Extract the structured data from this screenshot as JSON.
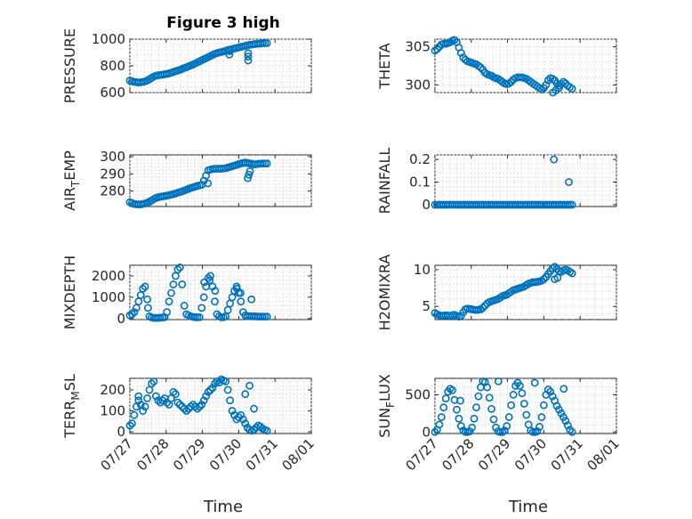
{
  "figure_title": "Figure 3 high",
  "x_axis_label": "Time",
  "x_tick_labels": [
    "07/27",
    "07/28",
    "07/29",
    "07/30",
    "07/31",
    "08/01"
  ],
  "marker_color": "#0072bd",
  "chart_data": [
    {
      "type": "scatter",
      "ylabel": "PRESSURE",
      "ylabel_sub": "",
      "ylabel_tail": "",
      "ylim": [
        600,
        1000
      ],
      "yticks": [
        600,
        800,
        1000
      ],
      "x": [
        0.0,
        0.06,
        0.12,
        0.18,
        0.24,
        0.3,
        0.36,
        0.42,
        0.48,
        0.54,
        0.6,
        0.66,
        0.72,
        0.78,
        0.84,
        0.9,
        0.96,
        1.02,
        1.08,
        1.14,
        1.2,
        1.26,
        1.32,
        1.38,
        1.44,
        1.5,
        1.56,
        1.62,
        1.68,
        1.74,
        1.8,
        1.86,
        1.92,
        1.98,
        2.04,
        2.1,
        2.16,
        2.22,
        2.28,
        2.34,
        2.4,
        2.46,
        2.52,
        2.58,
        2.64,
        2.7,
        2.76,
        2.82,
        2.88,
        2.94,
        3.0,
        3.06,
        3.12,
        3.18,
        3.24,
        3.3,
        3.36,
        3.42,
        3.48,
        3.54,
        3.6,
        3.66,
        3.72,
        3.78,
        2.74,
        2.74,
        3.26,
        3.26,
        3.26
      ],
      "y": [
        690,
        685,
        680,
        678,
        676,
        677,
        680,
        684,
        690,
        700,
        710,
        720,
        726,
        730,
        732,
        734,
        737,
        740,
        744,
        749,
        755,
        760,
        765,
        770,
        777,
        784,
        790,
        797,
        803,
        810,
        818,
        826,
        834,
        842,
        850,
        858,
        866,
        874,
        882,
        890,
        896,
        900,
        904,
        908,
        912,
        918,
        922,
        926,
        930,
        934,
        938,
        942,
        946,
        950,
        954,
        958,
        960,
        962,
        965,
        966,
        968,
        970,
        970,
        971,
        885,
        910,
        840,
        870,
        895
      ]
    },
    {
      "type": "scatter",
      "ylabel": "THETA",
      "ylabel_sub": "",
      "ylabel_tail": "",
      "ylim": [
        299,
        306
      ],
      "yticks": [
        300,
        305
      ],
      "x": [
        0.0,
        0.06,
        0.12,
        0.18,
        0.24,
        0.3,
        0.36,
        0.42,
        0.48,
        0.54,
        0.6,
        0.66,
        0.72,
        0.78,
        0.84,
        0.9,
        0.96,
        1.02,
        1.08,
        1.14,
        1.2,
        1.26,
        1.32,
        1.38,
        1.44,
        1.5,
        1.56,
        1.62,
        1.68,
        1.74,
        1.8,
        1.86,
        1.92,
        1.98,
        2.04,
        2.1,
        2.16,
        2.22,
        2.28,
        2.34,
        2.4,
        2.46,
        2.52,
        2.58,
        2.64,
        2.7,
        2.76,
        2.82,
        2.88,
        2.94,
        3.0,
        3.06,
        3.12,
        3.18,
        3.24,
        3.3,
        3.36,
        3.42,
        3.48,
        3.54,
        3.6,
        3.66,
        3.72,
        3.78,
        3.25,
        3.33,
        3.42
      ],
      "y": [
        304.5,
        304.7,
        305.0,
        305.3,
        305.4,
        305.4,
        305.5,
        305.6,
        305.8,
        305.9,
        305.6,
        304.9,
        304.2,
        303.6,
        303.3,
        303.1,
        303.0,
        302.9,
        302.8,
        302.7,
        302.5,
        302.3,
        302.0,
        301.6,
        301.4,
        301.3,
        301.2,
        301.0,
        300.9,
        300.8,
        300.6,
        300.4,
        300.2,
        300.1,
        300.2,
        300.4,
        300.7,
        300.9,
        301.0,
        301.0,
        301.0,
        300.9,
        300.8,
        300.6,
        300.4,
        300.2,
        300.0,
        299.8,
        299.6,
        299.4,
        299.6,
        300.0,
        300.6,
        300.9,
        300.8,
        300.6,
        300.2,
        299.9,
        300.1,
        300.4,
        300.2,
        299.9,
        299.7,
        299.5,
        299.0,
        299.3,
        299.6
      ]
    },
    {
      "type": "scatter",
      "ylabel": "AIR",
      "ylabel_sub": "T",
      "ylabel_tail": "EMP",
      "ylim": [
        271,
        301
      ],
      "yticks": [
        280,
        290,
        300
      ],
      "x": [
        0.0,
        0.06,
        0.12,
        0.18,
        0.24,
        0.3,
        0.36,
        0.42,
        0.48,
        0.54,
        0.6,
        0.66,
        0.72,
        0.78,
        0.84,
        0.9,
        0.96,
        1.02,
        1.08,
        1.14,
        1.2,
        1.26,
        1.32,
        1.38,
        1.44,
        1.5,
        1.56,
        1.62,
        1.68,
        1.74,
        1.8,
        1.86,
        1.92,
        1.98,
        2.04,
        2.1,
        2.16,
        2.22,
        2.28,
        2.34,
        2.4,
        2.46,
        2.52,
        2.58,
        2.64,
        2.7,
        2.76,
        2.82,
        2.88,
        2.94,
        3.0,
        3.06,
        3.12,
        3.18,
        3.24,
        3.3,
        3.36,
        3.42,
        3.48,
        3.54,
        3.6,
        3.66,
        3.72,
        3.78,
        2.15,
        3.25,
        3.28,
        3.31
      ],
      "y": [
        273.5,
        273,
        272.5,
        272.3,
        272.2,
        272.3,
        272.5,
        272.8,
        273.2,
        273.8,
        274.5,
        275.3,
        276,
        276.4,
        276.7,
        276.9,
        277.1,
        277.3,
        277.6,
        277.9,
        278.2,
        278.6,
        279,
        279.4,
        279.8,
        280.3,
        280.8,
        281.3,
        281.8,
        282.2,
        282.6,
        283,
        283.3,
        283.6,
        286,
        289,
        292,
        292.5,
        292.8,
        292.9,
        293.0,
        293.0,
        293.0,
        293.1,
        293.3,
        293.6,
        294,
        294.4,
        294.8,
        295.2,
        295.6,
        296,
        296.3,
        296.5,
        296.3,
        296.1,
        295.8,
        295.5,
        295.6,
        295.8,
        295.9,
        296.0,
        296.0,
        296.0,
        284.5,
        287.5,
        289.5,
        291.5
      ]
    },
    {
      "type": "scatter",
      "ylabel": "RAINFALL",
      "ylabel_sub": "",
      "ylabel_tail": "",
      "ylim": [
        -0.008,
        0.22
      ],
      "yticks": [
        0,
        0.1,
        0.2
      ],
      "x": [
        0.0,
        0.06,
        0.12,
        0.18,
        0.24,
        0.3,
        0.36,
        0.42,
        0.48,
        0.54,
        0.6,
        0.66,
        0.72,
        0.78,
        0.84,
        0.9,
        0.96,
        1.02,
        1.08,
        1.14,
        1.2,
        1.26,
        1.32,
        1.38,
        1.44,
        1.5,
        1.56,
        1.62,
        1.68,
        1.74,
        1.8,
        1.86,
        1.92,
        1.98,
        2.04,
        2.1,
        2.16,
        2.22,
        2.28,
        2.34,
        2.4,
        2.46,
        2.52,
        2.58,
        2.64,
        2.7,
        2.76,
        2.82,
        2.88,
        2.94,
        3.0,
        3.06,
        3.12,
        3.18,
        3.24,
        3.3,
        3.36,
        3.42,
        3.48,
        3.54,
        3.6,
        3.66,
        3.72,
        3.78,
        3.28,
        3.69
      ],
      "y": [
        0,
        0,
        0,
        0,
        0,
        0,
        0,
        0,
        0,
        0,
        0,
        0,
        0,
        0,
        0,
        0,
        0,
        0,
        0,
        0,
        0,
        0,
        0,
        0,
        0,
        0,
        0,
        0,
        0,
        0,
        0,
        0,
        0,
        0,
        0,
        0,
        0,
        0,
        0,
        0,
        0,
        0,
        0,
        0,
        0,
        0,
        0,
        0,
        0,
        0,
        0,
        0,
        0,
        0,
        0,
        0,
        0,
        0,
        0,
        0,
        0,
        0,
        0,
        0,
        0.2,
        0.1
      ]
    },
    {
      "type": "scatter",
      "ylabel": "MIXDEPTH",
      "ylabel_sub": "",
      "ylabel_tail": "",
      "ylim": [
        -50,
        2500
      ],
      "yticks": [
        0,
        1000,
        2000
      ],
      "x": [
        0.0,
        0.06,
        0.12,
        0.18,
        0.24,
        0.3,
        0.36,
        0.42,
        0.48,
        0.54,
        0.6,
        0.66,
        0.72,
        0.78,
        0.84,
        0.9,
        0.96,
        1.02,
        1.08,
        1.14,
        1.2,
        1.26,
        1.32,
        1.38,
        1.44,
        1.5,
        1.56,
        1.62,
        1.68,
        1.74,
        1.8,
        1.86,
        1.92,
        1.98,
        2.04,
        2.1,
        2.16,
        2.22,
        2.28,
        2.34,
        2.4,
        2.46,
        2.52,
        2.58,
        2.64,
        2.7,
        2.76,
        2.82,
        2.88,
        2.94,
        3.0,
        3.06,
        3.12,
        3.18,
        3.24,
        3.3,
        3.36,
        3.42,
        3.48,
        3.54,
        3.6,
        3.66,
        3.72,
        3.78,
        0.5,
        2.05,
        2.2,
        2.35,
        2.95,
        3.05,
        3.35
      ],
      "y": [
        150,
        200,
        300,
        500,
        800,
        1100,
        1400,
        1500,
        900,
        100,
        50,
        30,
        30,
        30,
        40,
        50,
        60,
        300,
        800,
        1200,
        1600,
        2000,
        2300,
        2400,
        1600,
        600,
        200,
        150,
        100,
        80,
        60,
        60,
        60,
        500,
        1000,
        1500,
        1900,
        2000,
        1500,
        800,
        200,
        100,
        60,
        60,
        100,
        400,
        700,
        1000,
        1300,
        1500,
        1200,
        800,
        300,
        150,
        120,
        110,
        100,
        100,
        100,
        90,
        90,
        90,
        90,
        90,
        500,
        1700,
        1800,
        1300,
        1400,
        1200,
        900
      ]
    },
    {
      "type": "scatter",
      "ylabel": "H2OMIXRA",
      "ylabel_sub": "",
      "ylabel_tail": "",
      "ylim": [
        3.2,
        10.6
      ],
      "yticks": [
        5,
        10
      ],
      "x": [
        0.0,
        0.06,
        0.12,
        0.18,
        0.24,
        0.3,
        0.36,
        0.42,
        0.48,
        0.54,
        0.6,
        0.66,
        0.72,
        0.78,
        0.84,
        0.9,
        0.96,
        1.02,
        1.08,
        1.14,
        1.2,
        1.26,
        1.32,
        1.38,
        1.44,
        1.5,
        1.56,
        1.62,
        1.68,
        1.74,
        1.8,
        1.86,
        1.92,
        1.98,
        2.04,
        2.1,
        2.16,
        2.22,
        2.28,
        2.34,
        2.4,
        2.46,
        2.52,
        2.58,
        2.64,
        2.7,
        2.76,
        2.82,
        2.88,
        2.94,
        3.0,
        3.06,
        3.12,
        3.18,
        3.24,
        3.3,
        3.36,
        3.42,
        3.48,
        3.54,
        3.6,
        3.66,
        3.72,
        3.78,
        3.3,
        3.38
      ],
      "y": [
        4.1,
        3.9,
        3.8,
        3.7,
        3.75,
        3.8,
        3.75,
        3.7,
        3.8,
        3.85,
        3.7,
        3.6,
        3.7,
        4.2,
        4.6,
        4.7,
        4.65,
        4.6,
        4.55,
        4.5,
        4.55,
        4.6,
        4.8,
        5.1,
        5.4,
        5.6,
        5.7,
        5.8,
        5.9,
        6.0,
        6.2,
        6.4,
        6.5,
        6.6,
        6.8,
        7.0,
        7.2,
        7.3,
        7.4,
        7.5,
        7.6,
        7.7,
        7.9,
        8.1,
        8.2,
        8.3,
        8.3,
        8.35,
        8.4,
        8.5,
        8.7,
        9.0,
        9.4,
        9.8,
        10.2,
        10.4,
        10.1,
        9.8,
        9.7,
        9.9,
        10.0,
        9.9,
        9.7,
        9.5,
        8.7,
        8.9
      ]
    },
    {
      "type": "scatter",
      "ylabel": "TERR",
      "ylabel_sub": "M",
      "ylabel_tail": "SL",
      "ylim": [
        -8,
        255
      ],
      "yticks": [
        0,
        100,
        200
      ],
      "x": [
        0.0,
        0.06,
        0.12,
        0.18,
        0.24,
        0.3,
        0.36,
        0.42,
        0.48,
        0.54,
        0.6,
        0.66,
        0.72,
        0.78,
        0.84,
        0.9,
        0.96,
        1.02,
        1.08,
        1.14,
        1.2,
        1.26,
        1.32,
        1.38,
        1.44,
        1.5,
        1.56,
        1.62,
        1.68,
        1.74,
        1.8,
        1.86,
        1.92,
        1.98,
        2.04,
        2.1,
        2.16,
        2.22,
        2.28,
        2.34,
        2.4,
        2.46,
        2.52,
        2.58,
        2.64,
        2.7,
        2.76,
        2.82,
        2.88,
        2.94,
        3.0,
        3.06,
        3.12,
        3.18,
        3.24,
        3.3,
        3.36,
        3.42,
        3.48,
        3.54,
        3.6,
        3.66,
        3.72,
        3.78,
        0.24,
        3.18,
        3.3,
        3.42
      ],
      "y": [
        30,
        40,
        80,
        120,
        150,
        130,
        100,
        120,
        160,
        200,
        230,
        240,
        170,
        150,
        140,
        150,
        160,
        140,
        130,
        160,
        190,
        180,
        140,
        130,
        120,
        110,
        100,
        110,
        120,
        130,
        120,
        110,
        120,
        130,
        150,
        170,
        190,
        200,
        210,
        230,
        240,
        235,
        250,
        245,
        240,
        200,
        150,
        100,
        80,
        60,
        70,
        80,
        60,
        40,
        20,
        10,
        5,
        10,
        20,
        30,
        25,
        15,
        10,
        5,
        170,
        180,
        220,
        110
      ]
    },
    {
      "type": "scatter",
      "ylabel": "SUN",
      "ylabel_sub": "F",
      "ylabel_tail": "LUX",
      "ylim": [
        -20,
        720
      ],
      "yticks": [
        0,
        500
      ],
      "x": [
        0.0,
        0.06,
        0.12,
        0.18,
        0.24,
        0.3,
        0.36,
        0.42,
        0.48,
        0.54,
        0.6,
        0.66,
        0.72,
        0.78,
        0.84,
        0.9,
        0.96,
        1.02,
        1.08,
        1.14,
        1.2,
        1.26,
        1.32,
        1.38,
        1.44,
        1.5,
        1.56,
        1.62,
        1.68,
        1.74,
        1.8,
        1.86,
        1.92,
        1.98,
        2.04,
        2.1,
        2.16,
        2.22,
        2.28,
        2.34,
        2.4,
        2.46,
        2.52,
        2.58,
        2.64,
        2.7,
        2.76,
        2.82,
        2.88,
        2.94,
        3.0,
        3.06,
        3.12,
        3.18,
        3.24,
        3.3,
        3.36,
        3.42,
        3.48,
        3.54,
        3.6,
        3.66,
        3.72,
        3.78,
        0.7,
        1.75,
        2.75,
        3.55
      ],
      "y": [
        0,
        30,
        100,
        200,
        330,
        450,
        540,
        580,
        560,
        430,
        300,
        180,
        80,
        20,
        0,
        0,
        10,
        60,
        180,
        330,
        480,
        600,
        680,
        670,
        600,
        460,
        310,
        170,
        60,
        10,
        0,
        0,
        20,
        80,
        200,
        360,
        500,
        620,
        660,
        620,
        520,
        380,
        230,
        100,
        20,
        0,
        0,
        10,
        70,
        200,
        360,
        500,
        570,
        540,
        480,
        420,
        350,
        300,
        250,
        200,
        150,
        90,
        30,
        0,
        420,
        680,
        660,
        580
      ]
    }
  ]
}
